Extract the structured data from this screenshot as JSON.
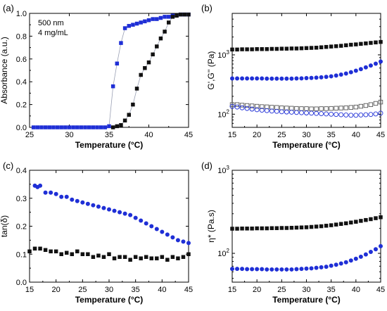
{
  "chart_data": [
    {
      "panel_label": "(a)",
      "type": "scatter",
      "annotations": [
        "500 nm",
        "4 mg/mL"
      ],
      "xlabel": "Temperature (°C)",
      "ylabel": "Absorbance (a.u.)",
      "xlim": [
        25,
        45
      ],
      "ylim": [
        0,
        1.0
      ],
      "x_ticks": [
        25,
        30,
        35,
        40,
        45
      ],
      "y_ticks": [
        0.0,
        0.2,
        0.4,
        0.6,
        0.8,
        1.0
      ],
      "y_tick_labels": [
        "0.0",
        "0.2",
        "0.4",
        "0.6",
        "0.8",
        "1.0"
      ],
      "y_scale": "linear",
      "grid": false,
      "series": [
        {
          "color": "#1f2fd6",
          "marker": "square",
          "filled": true,
          "line": true,
          "points": [
            [
              25.5,
              0
            ],
            [
              26,
              0
            ],
            [
              26.5,
              0
            ],
            [
              27,
              0
            ],
            [
              27.5,
              0
            ],
            [
              28,
              0
            ],
            [
              28.5,
              0
            ],
            [
              29,
              0
            ],
            [
              29.5,
              0
            ],
            [
              30,
              0
            ],
            [
              30.5,
              0
            ],
            [
              31,
              0
            ],
            [
              31.5,
              0
            ],
            [
              32,
              0
            ],
            [
              32.5,
              0
            ],
            [
              33,
              0
            ],
            [
              33.5,
              0
            ],
            [
              34,
              0
            ],
            [
              34.5,
              0
            ],
            [
              35,
              0.01
            ],
            [
              35.5,
              0.36
            ],
            [
              36,
              0.56
            ],
            [
              36.5,
              0.74
            ],
            [
              37,
              0.87
            ],
            [
              37.5,
              0.89
            ],
            [
              38,
              0.9
            ],
            [
              38.5,
              0.91
            ],
            [
              39,
              0.92
            ],
            [
              39.5,
              0.93
            ],
            [
              40,
              0.94
            ],
            [
              40.5,
              0.95
            ],
            [
              41,
              0.95
            ],
            [
              41.5,
              0.96
            ],
            [
              42,
              0.97
            ],
            [
              42.5,
              0.97
            ],
            [
              43,
              0.98
            ],
            [
              43.5,
              0.98
            ],
            [
              44,
              0.99
            ],
            [
              44.5,
              0.99
            ],
            [
              45,
              0.99
            ]
          ]
        },
        {
          "color": "#111111",
          "marker": "square",
          "filled": true,
          "line": true,
          "points": [
            [
              35.5,
              0
            ],
            [
              36,
              0.01
            ],
            [
              36.5,
              0.02
            ],
            [
              37,
              0.06
            ],
            [
              37.5,
              0.11
            ],
            [
              38,
              0.2
            ],
            [
              38.5,
              0.34
            ],
            [
              39,
              0.46
            ],
            [
              39.5,
              0.52
            ],
            [
              40,
              0.57
            ],
            [
              40.5,
              0.64
            ],
            [
              41,
              0.71
            ],
            [
              41.5,
              0.78
            ],
            [
              42,
              0.84
            ],
            [
              42.5,
              0.92
            ],
            [
              43,
              0.97
            ],
            [
              43.5,
              0.98
            ],
            [
              44,
              0.99
            ],
            [
              44.5,
              0.99
            ],
            [
              45,
              0.99
            ]
          ]
        }
      ]
    },
    {
      "panel_label": "(b)",
      "type": "scatter",
      "xlabel": "Temperature (°C)",
      "ylabel": "G',G'' (Pa)",
      "xlim": [
        15,
        45
      ],
      "ylim": [
        60,
        5000
      ],
      "y_scale": "log",
      "x_ticks": [
        15,
        20,
        25,
        30,
        35,
        40,
        45
      ],
      "y_ticks": [
        100,
        1000
      ],
      "grid": false,
      "series": [
        {
          "color": "#111111",
          "marker": "square",
          "filled": true,
          "x": [
            15,
            16,
            17,
            18,
            19,
            20,
            21,
            22,
            23,
            24,
            25,
            26,
            27,
            28,
            29,
            30,
            31,
            32,
            33,
            34,
            35,
            36,
            37,
            38,
            39,
            40,
            41,
            42,
            43,
            44,
            45
          ],
          "y": [
            1230,
            1230,
            1240,
            1240,
            1240,
            1250,
            1250,
            1250,
            1260,
            1260,
            1270,
            1270,
            1280,
            1280,
            1290,
            1300,
            1310,
            1320,
            1340,
            1360,
            1380,
            1400,
            1420,
            1450,
            1480,
            1500,
            1530,
            1560,
            1590,
            1620,
            1650
          ]
        },
        {
          "color": "#1f2fd6",
          "marker": "circle",
          "filled": true,
          "x": [
            15,
            16,
            17,
            18,
            19,
            20,
            21,
            22,
            23,
            24,
            25,
            26,
            27,
            28,
            29,
            30,
            31,
            32,
            33,
            34,
            35,
            36,
            37,
            38,
            39,
            40,
            41,
            42,
            43,
            44,
            45
          ],
          "y": [
            400,
            400,
            400,
            400,
            400,
            400,
            400,
            398,
            397,
            397,
            397,
            398,
            398,
            400,
            402,
            405,
            408,
            412,
            418,
            425,
            435,
            448,
            465,
            485,
            510,
            540,
            575,
            615,
            660,
            710,
            770
          ]
        },
        {
          "color": "#555555",
          "marker": "square",
          "filled": false,
          "x": [
            15,
            16,
            17,
            18,
            19,
            20,
            21,
            22,
            23,
            24,
            25,
            26,
            27,
            28,
            29,
            30,
            31,
            32,
            33,
            34,
            35,
            36,
            37,
            38,
            39,
            40,
            41,
            42,
            43,
            44,
            45
          ],
          "y": [
            145,
            145,
            142,
            140,
            138,
            136,
            134,
            133,
            131,
            130,
            128,
            127,
            126,
            125,
            124,
            124,
            123,
            123,
            124,
            124,
            125,
            126,
            127,
            128,
            130,
            132,
            136,
            140,
            145,
            152,
            160
          ]
        },
        {
          "color": "#1f2fd6",
          "marker": "circle",
          "filled": false,
          "x": [
            15,
            16,
            17,
            18,
            19,
            20,
            21,
            22,
            23,
            24,
            25,
            26,
            27,
            28,
            29,
            30,
            31,
            32,
            33,
            34,
            35,
            36,
            37,
            38,
            39,
            40,
            41,
            42,
            43,
            44,
            45
          ],
          "y": [
            135,
            132,
            128,
            125,
            122,
            119,
            117,
            115,
            113,
            112,
            110,
            109,
            108,
            107,
            106,
            105,
            104,
            103,
            102,
            101,
            100,
            99,
            98,
            97,
            96,
            96,
            97,
            98,
            99,
            101,
            104
          ]
        }
      ]
    },
    {
      "panel_label": "(c)",
      "type": "scatter",
      "xlabel": "Temperature (°C)",
      "ylabel": "tan(δ)",
      "xlim": [
        15,
        45
      ],
      "ylim": [
        0,
        0.4
      ],
      "y_scale": "linear",
      "x_ticks": [
        15,
        20,
        25,
        30,
        35,
        40,
        45
      ],
      "y_ticks": [
        0.0,
        0.1,
        0.2,
        0.3,
        0.4
      ],
      "y_tick_labels": [
        "0.0",
        "0.1",
        "0.2",
        "0.3",
        "0.4"
      ],
      "grid": false,
      "series": [
        {
          "color": "#1f2fd6",
          "marker": "circle",
          "filled": true,
          "x": [
            16,
            16.5,
            17,
            18,
            19,
            20,
            21,
            22,
            23,
            24,
            25,
            26,
            27,
            28,
            29,
            30,
            31,
            32,
            33,
            34,
            35,
            36,
            37,
            38,
            39,
            40,
            41,
            42,
            43,
            44,
            45
          ],
          "y": [
            0.345,
            0.34,
            0.345,
            0.32,
            0.32,
            0.315,
            0.305,
            0.305,
            0.295,
            0.29,
            0.285,
            0.28,
            0.275,
            0.27,
            0.265,
            0.26,
            0.255,
            0.25,
            0.245,
            0.24,
            0.23,
            0.22,
            0.21,
            0.2,
            0.19,
            0.18,
            0.17,
            0.16,
            0.15,
            0.145,
            0.14
          ]
        },
        {
          "color": "#111111",
          "marker": "square",
          "filled": true,
          "x": [
            15,
            16,
            17,
            18,
            19,
            20,
            21,
            22,
            23,
            24,
            25,
            26,
            27,
            28,
            29,
            30,
            31,
            32,
            33,
            34,
            35,
            36,
            37,
            38,
            39,
            40,
            41,
            42,
            43,
            44,
            45
          ],
          "y": [
            0.11,
            0.12,
            0.12,
            0.115,
            0.11,
            0.11,
            0.1,
            0.105,
            0.1,
            0.11,
            0.1,
            0.1,
            0.09,
            0.095,
            0.09,
            0.1,
            0.085,
            0.09,
            0.09,
            0.08,
            0.09,
            0.085,
            0.09,
            0.085,
            0.085,
            0.09,
            0.08,
            0.09,
            0.085,
            0.09,
            0.1
          ]
        }
      ]
    },
    {
      "panel_label": "(d)",
      "type": "scatter",
      "xlabel": "Temperature (°C)",
      "ylabel": "η* (Pa.s)",
      "xlim": [
        15,
        45
      ],
      "ylim": [
        45,
        1000
      ],
      "y_scale": "log",
      "x_ticks": [
        15,
        20,
        25,
        30,
        35,
        40,
        45
      ],
      "y_ticks": [
        100,
        1000
      ],
      "grid": false,
      "series": [
        {
          "color": "#111111",
          "marker": "square",
          "filled": true,
          "x": [
            15,
            16,
            17,
            18,
            19,
            20,
            21,
            22,
            23,
            24,
            25,
            26,
            27,
            28,
            29,
            30,
            31,
            32,
            33,
            34,
            35,
            36,
            37,
            38,
            39,
            40,
            41,
            42,
            43,
            44,
            45
          ],
          "y": [
            198,
            198,
            199,
            199,
            199,
            200,
            200,
            200,
            201,
            201,
            202,
            202,
            203,
            204,
            205,
            206,
            208,
            210,
            212,
            215,
            218,
            222,
            226,
            230,
            235,
            240,
            246,
            252,
            258,
            265,
            272
          ]
        },
        {
          "color": "#1f2fd6",
          "marker": "circle",
          "filled": true,
          "x": [
            15,
            16,
            17,
            18,
            19,
            20,
            21,
            22,
            23,
            24,
            25,
            26,
            27,
            28,
            29,
            30,
            31,
            32,
            33,
            34,
            35,
            36,
            37,
            38,
            39,
            40,
            41,
            42,
            43,
            44,
            45
          ],
          "y": [
            65,
            65,
            65,
            64.5,
            64.5,
            64.5,
            64.5,
            64,
            64,
            64,
            64,
            64,
            64,
            64.5,
            65,
            65.5,
            66,
            67,
            68,
            69,
            71,
            73,
            75.5,
            78,
            82,
            86,
            91,
            97,
            104,
            112,
            122
          ]
        }
      ]
    }
  ]
}
